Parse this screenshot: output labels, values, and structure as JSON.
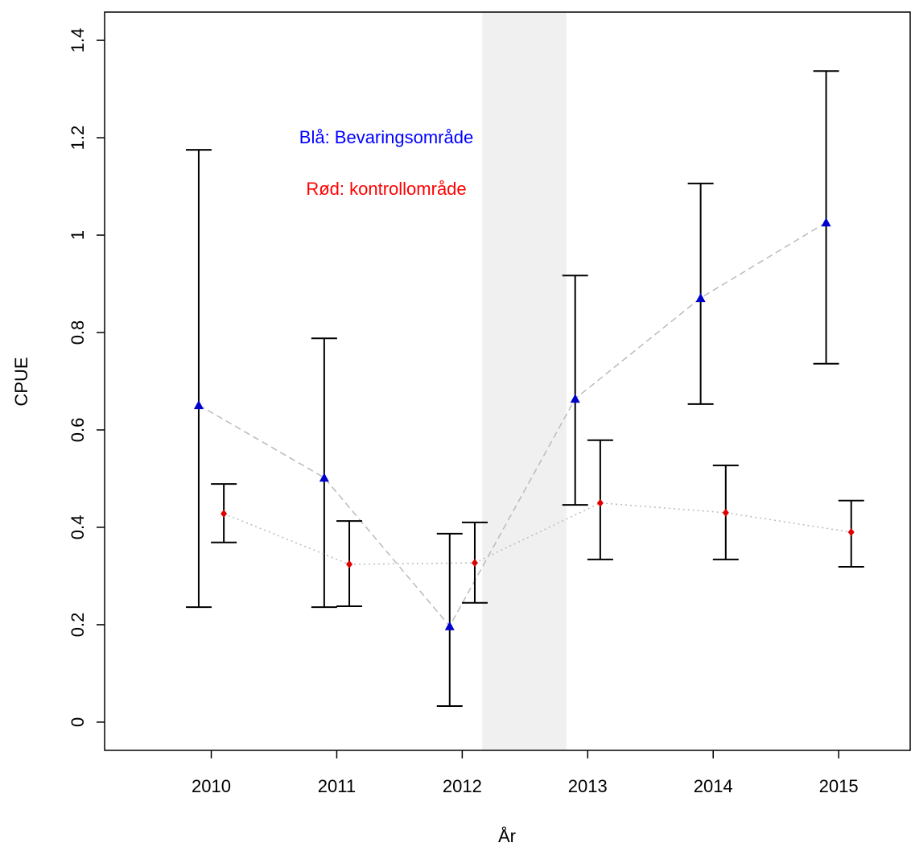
{
  "chart_data": {
    "type": "errorbar",
    "x_label": "År",
    "y_label": "CPUE",
    "xlim": [
      2009.15,
      2015.57
    ],
    "ylim": [
      -0.058,
      1.458
    ],
    "xticks": [
      2010,
      2011,
      2012,
      2013,
      2014,
      2015
    ],
    "yticks": [
      0,
      0.2,
      0.4,
      0.6,
      0.8,
      1,
      1.2,
      1.4
    ],
    "highlight_range": [
      2012.16,
      2012.83
    ],
    "highlight_color": "#f0f0f0",
    "annotations": [
      {
        "text": "Blå: Bevaringsområde",
        "color": "#0000ff"
      },
      {
        "text": "Rød: kontrollområde",
        "color": "#ff0000"
      }
    ],
    "series": [
      {
        "color": "#0000cc",
        "marker": "triangle",
        "line_color": "#bbbbbb",
        "line_dash": "8 5",
        "x": [
          2009.9,
          2010.9,
          2011.9,
          2012.9,
          2013.9,
          2014.9
        ],
        "values": [
          0.651,
          0.502,
          0.197,
          0.664,
          0.871,
          1.026
        ],
        "lower": [
          0.236,
          0.236,
          0.033,
          0.446,
          0.653,
          0.736
        ],
        "upper": [
          1.175,
          0.788,
          0.387,
          0.917,
          1.106,
          1.337
        ]
      },
      {
        "color": "#dd0000",
        "marker": "diamond",
        "line_color": "#bbbbbb",
        "line_dash": "2 4",
        "x": [
          2010.1,
          2011.1,
          2012.1,
          2013.1,
          2014.1,
          2015.1
        ],
        "values": [
          0.428,
          0.324,
          0.327,
          0.45,
          0.43,
          0.39
        ],
        "lower": [
          0.369,
          0.238,
          0.245,
          0.334,
          0.334,
          0.319
        ],
        "upper": [
          0.489,
          0.413,
          0.41,
          0.579,
          0.527,
          0.455
        ]
      }
    ]
  }
}
